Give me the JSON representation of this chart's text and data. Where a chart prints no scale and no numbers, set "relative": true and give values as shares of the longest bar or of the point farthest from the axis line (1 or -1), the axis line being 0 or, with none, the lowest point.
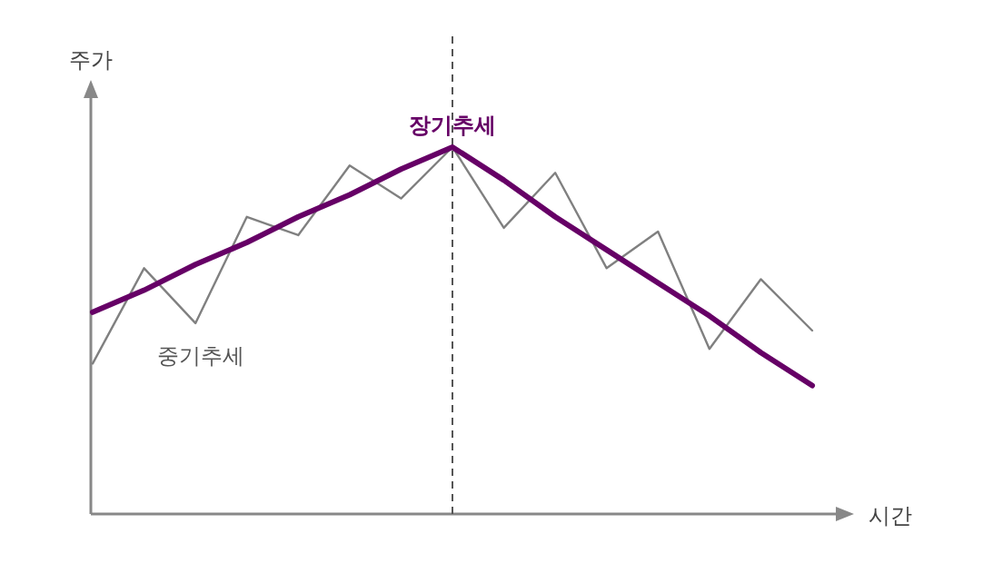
{
  "chart_data": {
    "type": "line",
    "relative": true,
    "xlabel": "시간",
    "ylabel": "주가",
    "categories": [
      null,
      null,
      null,
      null,
      null,
      null,
      null,
      null,
      null,
      null,
      null,
      null,
      null,
      null,
      null
    ],
    "series": [
      {
        "name": "장기추세",
        "color": "#660066",
        "values": [
          0.55,
          0.61,
          0.68,
          0.74,
          0.81,
          0.87,
          0.94,
          1,
          0.91,
          0.81,
          0.72,
          0.63,
          0.54,
          0.44,
          0.35
        ]
      },
      {
        "name": "중기추세",
        "color": "#808080",
        "values": [
          0.41,
          0.67,
          0.52,
          0.81,
          0.76,
          0.95,
          0.86,
          1,
          0.78,
          0.93,
          0.67,
          0.77,
          0.45,
          0.64,
          0.5
        ]
      }
    ]
  }
}
